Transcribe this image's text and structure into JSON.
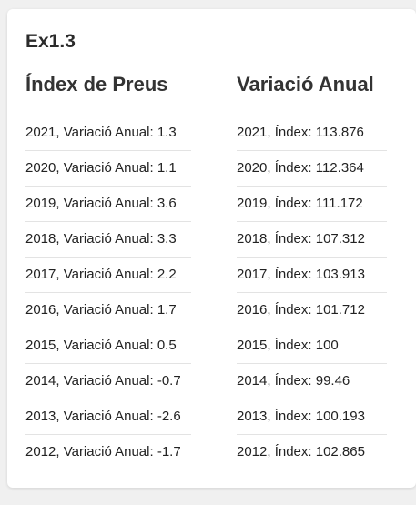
{
  "title": "Ex1.3",
  "left_column": {
    "heading": "Índex de Preus",
    "rows": [
      "2021, Variació Anual: 1.3",
      "2020, Variació Anual: 1.1",
      "2019, Variació Anual: 3.6",
      "2018, Variació Anual: 3.3",
      "2017, Variació Anual: 2.2",
      "2016, Variació Anual: 1.7",
      "2015, Variació Anual: 0.5",
      "2014, Variació Anual: -0.7",
      "2013, Variació Anual: -2.6",
      "2012, Variació Anual: -1.7"
    ]
  },
  "right_column": {
    "heading": "Variació Anual",
    "rows": [
      "2021, Índex: 113.876",
      "2020, Índex: 112.364",
      "2019, Índex: 111.172",
      "2018, Índex: 107.312",
      "2017, Índex: 103.913",
      "2016, Índex: 101.712",
      "2015, Índex: 100",
      "2014, Índex: 99.46",
      "2013, Índex: 100.193",
      "2012, Índex: 102.865"
    ]
  }
}
